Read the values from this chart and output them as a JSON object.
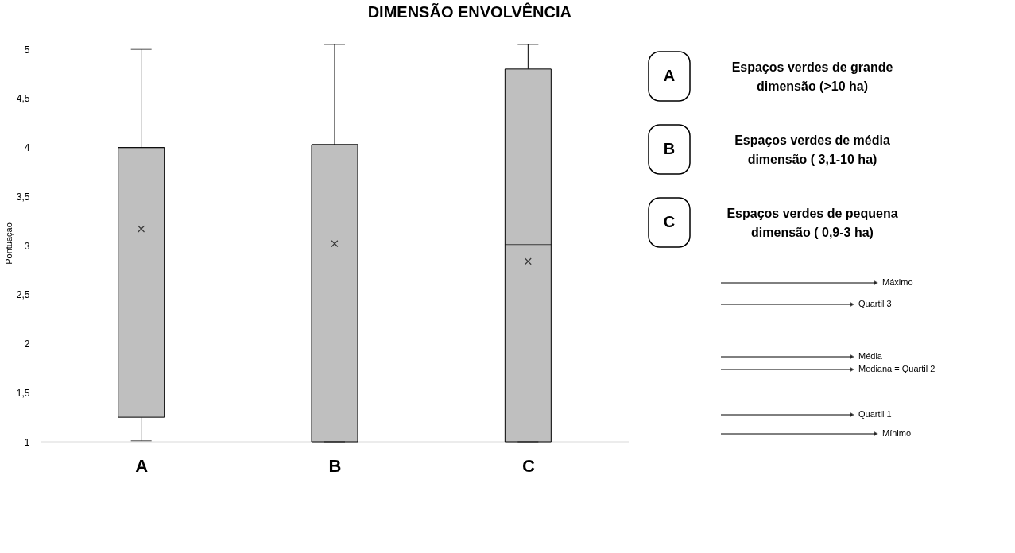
{
  "chart_data": {
    "type": "box",
    "title": "DIMENSÃO ENVOLVÊNCIA",
    "ylabel": "Pontuação",
    "categories": [
      "A",
      "B",
      "C"
    ],
    "boxes": [
      {
        "low": 1.01,
        "q1": 1.25,
        "median": 4.0,
        "q3": 4.0,
        "high": 5.0,
        "mean": 3.17
      },
      {
        "low": 1.0,
        "q1": 1.0,
        "median": 4.03,
        "q3": 4.03,
        "high": 5.05,
        "mean": 3.02
      },
      {
        "low": 1.0,
        "q1": 1.0,
        "median": 3.01,
        "q3": 4.8,
        "high": 5.05,
        "mean": 2.84
      }
    ],
    "color": "#bfbfbf",
    "ylim": [
      1,
      5.05
    ],
    "yticks": [
      1,
      {
        "value": 1.5,
        "label": "1,5"
      },
      2,
      {
        "value": 2.5,
        "label": "2,5"
      },
      3,
      {
        "value": 3.5,
        "label": "3,5"
      },
      4,
      {
        "value": 4.5,
        "label": "4,5"
      },
      5
    ],
    "grid": false,
    "marker": "cross",
    "annotations": [
      "Espaços verdes de grande dimensão (>10 ha)",
      "Espaços verdes de média dimensão ( 3,1-10 ha)",
      "Espaços verdes de pequena dimensão ( 0,9-3 ha)",
      "Máximo",
      "Quartil 3",
      "Média",
      "Mediana = Quartil 2",
      "Quartil 1",
      "Mínimo"
    ]
  }
}
